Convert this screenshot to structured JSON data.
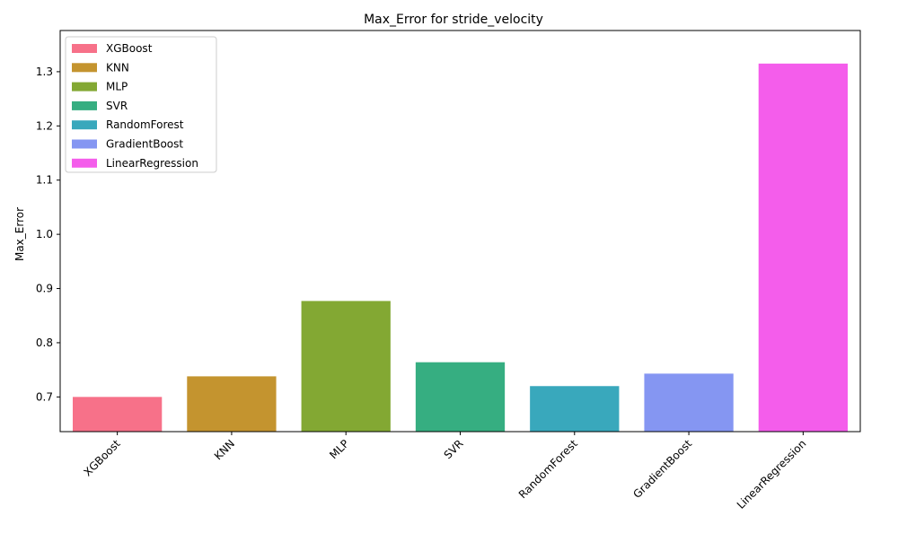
{
  "chart_data": {
    "type": "bar",
    "title": "Max_Error for stride_velocity",
    "xlabel": "",
    "ylabel": "Max_Error",
    "categories": [
      "XGBoost",
      "KNN",
      "MLP",
      "SVR",
      "RandomForest",
      "GradientBoost",
      "LinearRegression"
    ],
    "values": [
      0.7,
      0.738,
      0.877,
      0.764,
      0.72,
      0.743,
      1.315
    ],
    "colors": [
      "#f77189",
      "#c4942f",
      "#83a833",
      "#36ae81",
      "#39a8bc",
      "#8596f2",
      "#f45deb"
    ],
    "ylim": [
      0.636,
      1.376
    ],
    "yticks": [
      0.7,
      0.8,
      0.9,
      1.0,
      1.1,
      1.2,
      1.3
    ],
    "ytick_labels": [
      "0.7",
      "0.8",
      "0.9",
      "1.0",
      "1.1",
      "1.2",
      "1.3"
    ],
    "legend": {
      "placement": "top-left",
      "entries": [
        "XGBoost",
        "KNN",
        "MLP",
        "SVR",
        "RandomForest",
        "GradientBoost",
        "LinearRegression"
      ]
    },
    "grid": false
  }
}
